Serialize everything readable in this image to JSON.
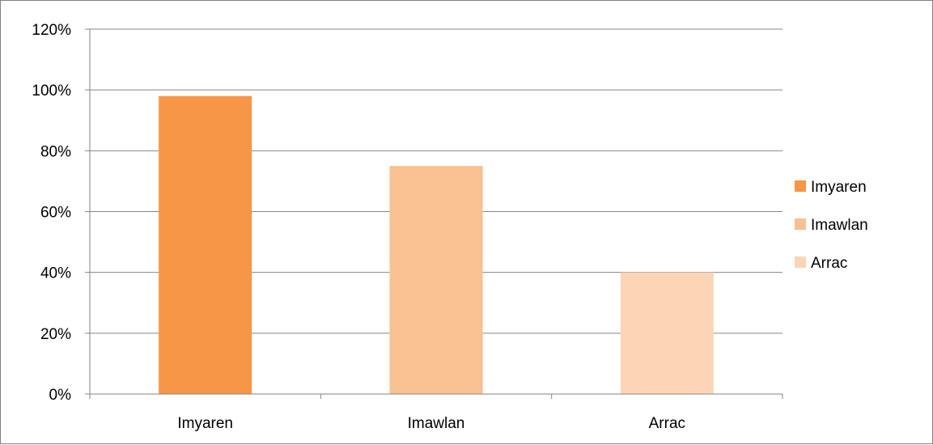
{
  "chart_data": {
    "type": "bar",
    "categories": [
      "Imyaren",
      "Imawlan",
      "Arrac"
    ],
    "values": [
      0.98,
      0.75,
      0.4
    ],
    "ylim": [
      0,
      1.2
    ],
    "yticks": [
      0,
      0.2,
      0.4,
      0.6,
      0.8,
      1.0,
      1.2
    ],
    "ytick_labels": [
      "0%",
      "20%",
      "40%",
      "60%",
      "80%",
      "100%",
      "120%"
    ],
    "title": "",
    "xlabel": "",
    "ylabel": "",
    "grid": true,
    "legend_position": "right",
    "legend": [
      "Imyaren",
      "Imawlan",
      "Arrac"
    ],
    "colors": [
      "#F79646",
      "#F9C091",
      "#FBD5B5"
    ]
  }
}
